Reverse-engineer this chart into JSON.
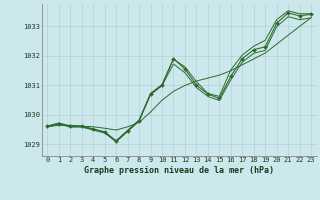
{
  "xlabel": "Graphe pression niveau de la mer (hPa)",
  "x": [
    0,
    1,
    2,
    3,
    4,
    5,
    6,
    7,
    8,
    9,
    10,
    11,
    12,
    13,
    14,
    15,
    16,
    17,
    18,
    19,
    20,
    21,
    22,
    23
  ],
  "y_main": [
    1029.6,
    1029.7,
    1029.6,
    1029.6,
    1029.5,
    1029.4,
    1029.1,
    1029.45,
    1029.8,
    1030.7,
    1031.0,
    1031.9,
    1031.55,
    1031.0,
    1030.7,
    1030.55,
    1031.3,
    1031.9,
    1032.2,
    1032.3,
    1033.1,
    1033.45,
    1033.35,
    1033.4
  ],
  "y_upper": [
    1029.62,
    1029.72,
    1029.62,
    1029.62,
    1029.52,
    1029.42,
    1029.12,
    1029.47,
    1029.82,
    1030.72,
    1031.02,
    1031.88,
    1031.62,
    1031.12,
    1030.72,
    1030.62,
    1031.52,
    1032.02,
    1032.32,
    1032.52,
    1033.22,
    1033.52,
    1033.42,
    1033.42
  ],
  "y_lower": [
    1029.58,
    1029.68,
    1029.58,
    1029.58,
    1029.48,
    1029.38,
    1029.08,
    1029.43,
    1029.78,
    1030.68,
    1030.98,
    1031.72,
    1031.42,
    1030.92,
    1030.62,
    1030.48,
    1031.18,
    1031.78,
    1032.08,
    1032.18,
    1032.98,
    1033.32,
    1033.22,
    1033.28
  ],
  "y_trend": [
    1029.59,
    1029.64,
    1029.64,
    1029.61,
    1029.59,
    1029.54,
    1029.48,
    1029.59,
    1029.74,
    1030.09,
    1030.49,
    1030.79,
    1030.99,
    1031.14,
    1031.24,
    1031.34,
    1031.49,
    1031.69,
    1031.89,
    1032.09,
    1032.39,
    1032.69,
    1032.99,
    1033.29
  ],
  "background_color": "#cce8ec",
  "grid_color": "#aacccc",
  "line_color": "#2d6a2d",
  "marker_color": "#2d6a2d",
  "text_color": "#1a3a1a",
  "ylim_min": 1028.6,
  "ylim_max": 1033.75,
  "yticks": [
    1029,
    1030,
    1031,
    1032,
    1033
  ],
  "xtick_labels": [
    "0",
    "1",
    "2",
    "3",
    "4",
    "5",
    "6",
    "7",
    "8",
    "9",
    "10",
    "11",
    "12",
    "13",
    "14",
    "15",
    "16",
    "17",
    "18",
    "19",
    "20",
    "21",
    "22",
    "23"
  ],
  "tick_fontsize": 5.0,
  "label_fontsize": 6.0
}
